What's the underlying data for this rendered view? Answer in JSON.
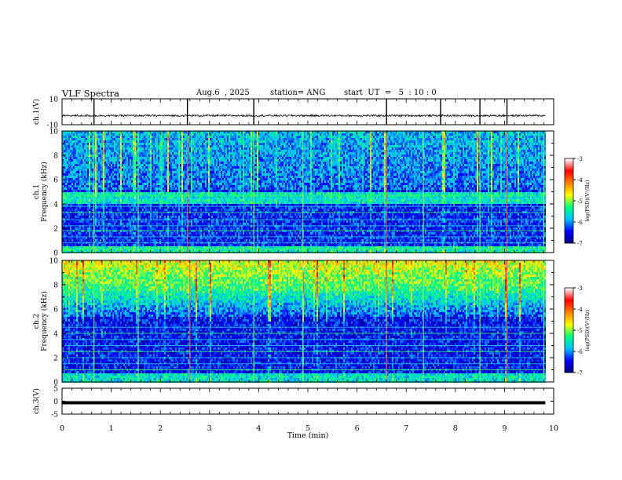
{
  "header": {
    "title": "VLF Spectra",
    "date": "Aug.6  , 2025",
    "station": "station= ANG",
    "start": "start  UT  =   5  : 10 : 0"
  },
  "chart_data": [
    {
      "type": "line",
      "panel": "ch1-waveform",
      "ylabel": "ch.1(V)",
      "ylim": [
        -10,
        10
      ],
      "yticks": [
        "10",
        "-10"
      ],
      "baseline_volts": -3,
      "spikes_min": [
        0.65,
        2.55,
        3.9,
        6.6,
        7.7,
        8.5,
        9.05
      ]
    },
    {
      "type": "heatmap",
      "panel": "ch1-spectrogram",
      "ylabel": "Frequency  (kHz)",
      "channel_label": "ch.1",
      "ylim": [
        0,
        10
      ],
      "yticks": [
        "0",
        "2",
        "4",
        "6",
        "8",
        "10"
      ],
      "colorbar": {
        "label": "log(PSD)(V²/Hz)",
        "range": [
          -7,
          -3
        ],
        "ticks": [
          "-3",
          "-4",
          "-5",
          "-6",
          "-7"
        ],
        "colors": [
          "#00007a",
          "#0000ff",
          "#00bfff",
          "#00ff80",
          "#ffff00",
          "#ff8000",
          "#ff0000",
          "#ffffff"
        ]
      },
      "tone_lines_khz": [
        0.3,
        0.8,
        1.3,
        1.8,
        2.2,
        2.7,
        3.3,
        3.8,
        4.4,
        4.7
      ],
      "vertical_events_min": [
        0.65,
        1.55,
        2.55,
        3.9,
        4.9,
        6.6,
        7.35,
        8.5,
        9.05,
        9.8
      ]
    },
    {
      "type": "heatmap",
      "panel": "ch2-spectrogram",
      "ylabel": "Frequency  (kHz)",
      "channel_label": "ch.2",
      "ylim": [
        0,
        10
      ],
      "yticks": [
        "0",
        "2",
        "4",
        "6",
        "8",
        "10"
      ],
      "colorbar": {
        "label": "log(PSD)(V²/Hz)",
        "range": [
          -7,
          -3
        ],
        "ticks": [
          "-3",
          "-4",
          "-5",
          "-6",
          "-7"
        ],
        "colors": [
          "#00007a",
          "#0000ff",
          "#00bfff",
          "#00ff80",
          "#ffff00",
          "#ff8000",
          "#ff0000",
          "#ffffff"
        ]
      },
      "tone_lines_khz": [
        1.0,
        1.5,
        2.0,
        2.5,
        3.0,
        3.5,
        4.0,
        4.5
      ],
      "vertical_events_min": [
        0.65,
        1.55,
        2.6,
        3.9,
        4.9,
        6.6,
        7.35,
        8.5,
        9.05,
        9.8
      ]
    },
    {
      "type": "line",
      "panel": "ch3-waveform",
      "ylabel": "ch.3(V)",
      "ylim": [
        -5,
        5
      ],
      "yticks": [
        "5",
        "0",
        "-5"
      ],
      "constant_volts": -0.6
    }
  ],
  "xaxis": {
    "label": "Time  (min)",
    "range": [
      0,
      10
    ],
    "ticks": [
      "0",
      "1",
      "2",
      "3",
      "4",
      "5",
      "6",
      "7",
      "8",
      "9",
      "10"
    ]
  }
}
